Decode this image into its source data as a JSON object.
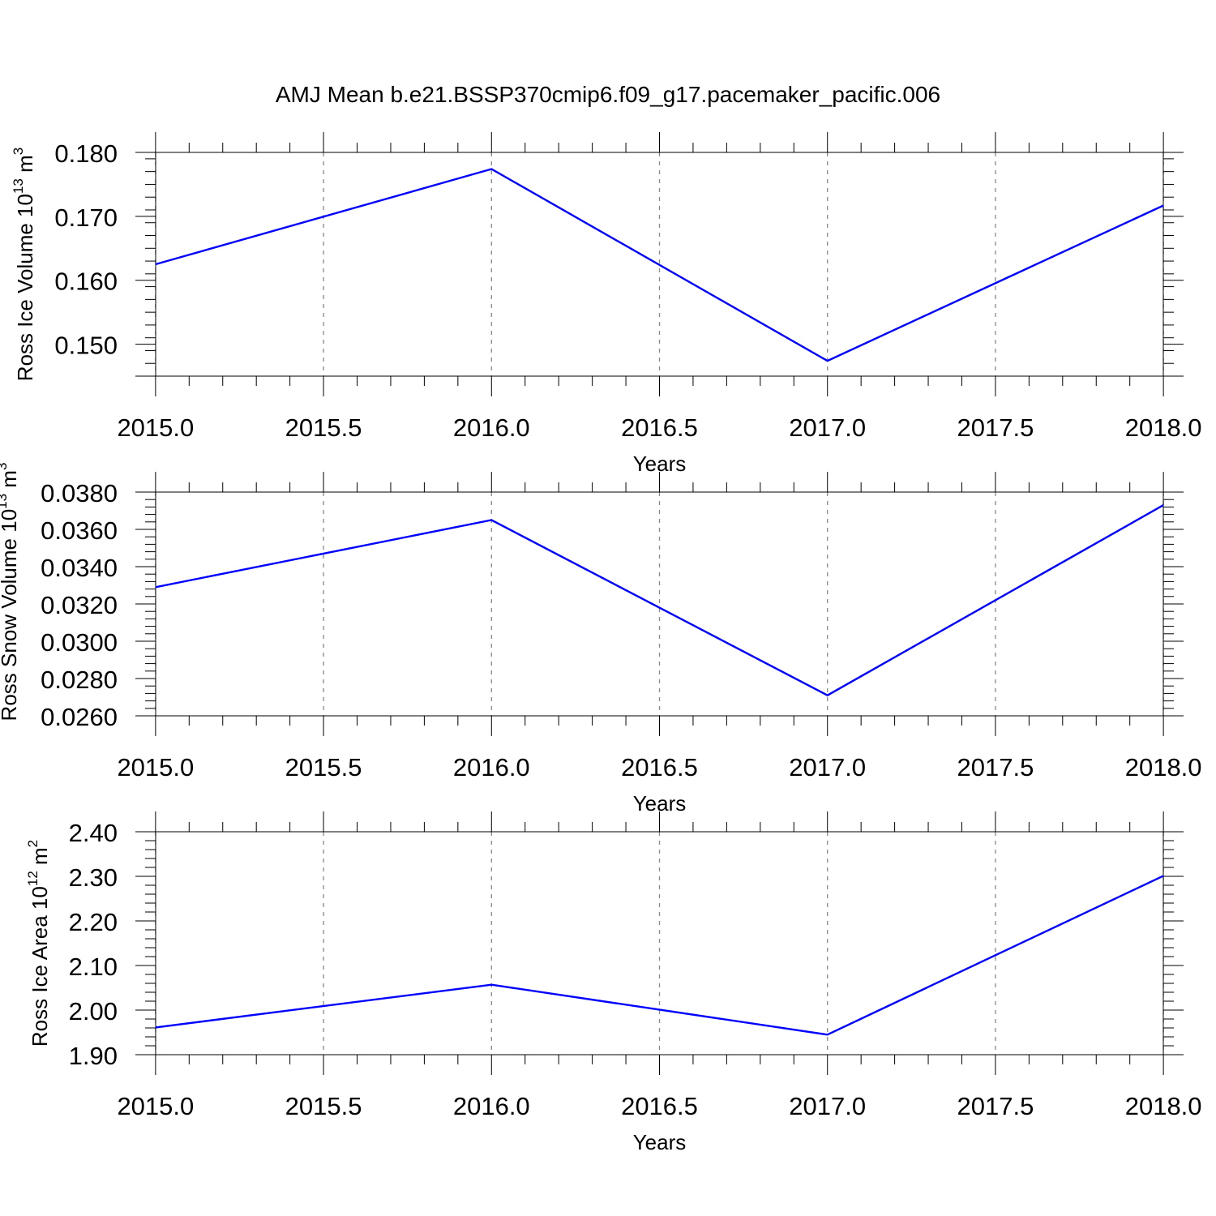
{
  "title": "AMJ Mean b.e21.BSSP370cmip6.f09_g17.pacemaker_pacific.006",
  "chart_data": [
    {
      "type": "line",
      "ylabel": "Ross Ice Volume 10",
      "ylabel_sup": "13",
      "ylabel_unit": " m",
      "ylabel_unit_sup": "3",
      "xlabel": "Years",
      "x": [
        2015,
        2016,
        2017,
        2018
      ],
      "xlim": [
        2014.94,
        2018.06
      ],
      "xticks": [
        2015.0,
        2015.5,
        2016.0,
        2016.5,
        2017.0,
        2017.5,
        2018.0
      ],
      "xtick_labels": [
        "2015.0",
        "2015.5",
        "2016.0",
        "2016.5",
        "2017.0",
        "2017.5",
        "2018.0"
      ],
      "ylim": [
        0.145,
        0.18
      ],
      "yticks": [
        0.15,
        0.16,
        0.17,
        0.18
      ],
      "ytick_labels": [
        "0.150",
        "0.160",
        "0.170",
        "0.180"
      ],
      "yminor_step": 0.002,
      "series": [
        {
          "values": [
            0.1625,
            0.1774,
            0.1474,
            0.1717
          ],
          "color": "#0000ff"
        }
      ],
      "grid": "x-dashed"
    },
    {
      "type": "line",
      "ylabel": "Ross Snow Volume 10",
      "ylabel_sup": "13",
      "ylabel_unit": " m",
      "ylabel_unit_sup": "3",
      "xlabel": "Years",
      "x": [
        2015,
        2016,
        2017,
        2018
      ],
      "xlim": [
        2014.94,
        2018.06
      ],
      "xticks": [
        2015.0,
        2015.5,
        2016.0,
        2016.5,
        2017.0,
        2017.5,
        2018.0
      ],
      "xtick_labels": [
        "2015.0",
        "2015.5",
        "2016.0",
        "2016.5",
        "2017.0",
        "2017.5",
        "2018.0"
      ],
      "ylim": [
        0.026,
        0.038
      ],
      "yticks": [
        0.026,
        0.028,
        0.03,
        0.032,
        0.034,
        0.036,
        0.038
      ],
      "ytick_labels": [
        "0.0260",
        "0.0280",
        "0.0300",
        "0.0320",
        "0.0340",
        "0.0360",
        "0.0380"
      ],
      "yminor_step": 0.0004,
      "series": [
        {
          "values": [
            0.0329,
            0.0365,
            0.0271,
            0.0373
          ],
          "color": "#0000ff"
        }
      ],
      "grid": "x-dashed"
    },
    {
      "type": "line",
      "ylabel": "Ross Ice Area 10",
      "ylabel_sup": "12",
      "ylabel_unit": " m",
      "ylabel_unit_sup": "2",
      "xlabel": "Years",
      "x": [
        2015,
        2016,
        2017,
        2018
      ],
      "xlim": [
        2014.94,
        2018.06
      ],
      "xticks": [
        2015.0,
        2015.5,
        2016.0,
        2016.5,
        2017.0,
        2017.5,
        2018.0
      ],
      "xtick_labels": [
        "2015.0",
        "2015.5",
        "2016.0",
        "2016.5",
        "2017.0",
        "2017.5",
        "2018.0"
      ],
      "ylim": [
        1.9,
        2.4
      ],
      "yticks": [
        1.9,
        2.0,
        2.1,
        2.2,
        2.3,
        2.4
      ],
      "ytick_labels": [
        "1.90",
        "2.00",
        "2.10",
        "2.20",
        "2.30",
        "2.40"
      ],
      "yminor_step": 0.02,
      "series": [
        {
          "values": [
            1.961,
            2.057,
            1.945,
            2.301
          ],
          "color": "#0000ff"
        }
      ],
      "grid": "x-dashed"
    }
  ]
}
